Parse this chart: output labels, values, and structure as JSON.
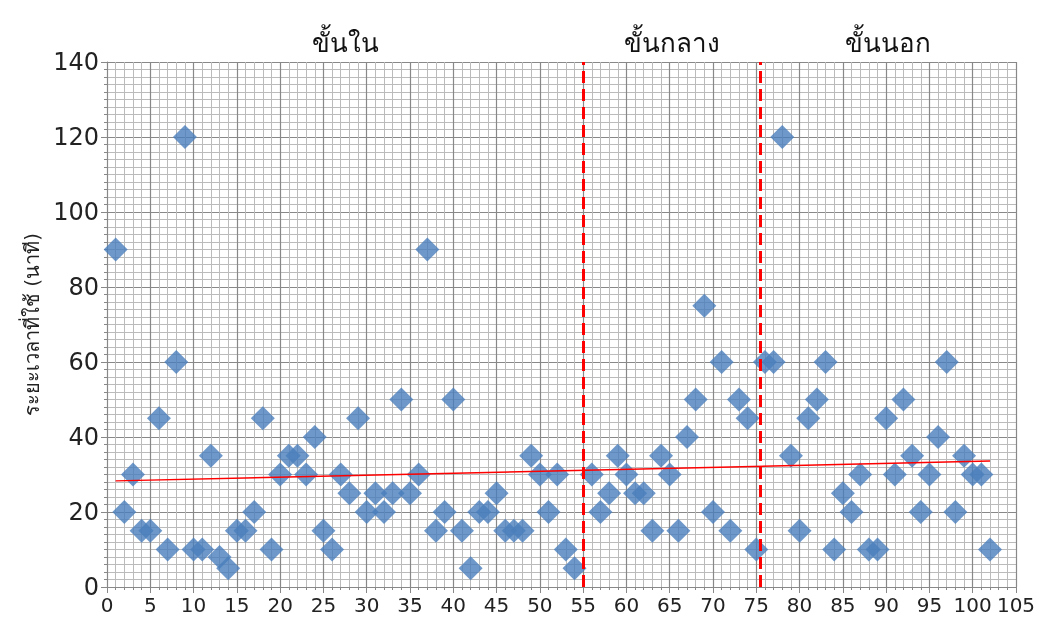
{
  "chart_data": {
    "type": "scatter",
    "ylabel": "ระยะเวลาที่ใช้ (นาที)",
    "xlim": [
      0,
      105
    ],
    "xticks": [
      0,
      5,
      10,
      15,
      20,
      25,
      30,
      35,
      40,
      45,
      50,
      55,
      60,
      65,
      70,
      75,
      80,
      85,
      90,
      95,
      100,
      105
    ],
    "ylim": [
      0,
      140
    ],
    "yticks": [
      0,
      20,
      40,
      60,
      80,
      100,
      120,
      140
    ],
    "grid": true,
    "series": [
      {
        "color": "#4a7ebb",
        "marker": "diamond",
        "x": [
          1,
          2,
          3,
          4,
          5,
          6,
          7,
          8,
          9,
          10,
          11,
          12,
          13,
          14,
          15,
          16,
          17,
          18,
          19,
          20,
          21,
          22,
          23,
          24,
          25,
          26,
          27,
          28,
          29,
          30,
          31,
          32,
          33,
          34,
          35,
          36,
          37,
          38,
          39,
          40,
          41,
          42,
          43,
          44,
          45,
          46,
          47,
          48,
          49,
          50,
          51,
          52,
          53,
          54,
          56,
          57,
          58,
          59,
          60,
          61,
          62,
          63,
          64,
          65,
          66,
          67,
          68,
          69,
          70,
          71,
          72,
          73,
          74,
          75,
          76,
          77,
          78,
          79,
          80,
          81,
          82,
          83,
          84,
          85,
          86,
          87,
          88,
          89,
          90,
          91,
          92,
          93,
          94,
          95,
          96,
          97,
          98,
          99,
          100,
          101,
          102
        ],
        "values": [
          90,
          20,
          30,
          15,
          15,
          45,
          10,
          60,
          120,
          10,
          10,
          35,
          8,
          5,
          15,
          15,
          20,
          45,
          10,
          30,
          35,
          35,
          30,
          40,
          15,
          10,
          30,
          25,
          45,
          20,
          25,
          20,
          25,
          50,
          25,
          30,
          90,
          15,
          20,
          50,
          15,
          5,
          20,
          20,
          25,
          15,
          15,
          15,
          35,
          30,
          20,
          30,
          10,
          5,
          30,
          20,
          25,
          35,
          30,
          25,
          25,
          15,
          35,
          30,
          15,
          40,
          50,
          75,
          20,
          60,
          15,
          50,
          45,
          10,
          60,
          60,
          120,
          35,
          15,
          45,
          50,
          60,
          10,
          25,
          20,
          30,
          10,
          10,
          45,
          30,
          50,
          35,
          20,
          30,
          40,
          60,
          20,
          35,
          30,
          30,
          10
        ]
      },
      {
        "type": "line",
        "color": "#ff0000",
        "line_style": "solid",
        "marker": "none",
        "x": [
          1,
          102
        ],
        "values": [
          28.3,
          33.6
        ]
      }
    ],
    "ref_lines": [
      {
        "axis": "x",
        "value": 55,
        "color": "#ff0000",
        "line_style": "dashed"
      },
      {
        "axis": "x",
        "value": 75.5,
        "color": "#ff0000",
        "line_style": "dashed"
      }
    ],
    "annotations": [
      "ขั้นใน",
      "ขั้นกลาง",
      "ขั้นนอก"
    ]
  }
}
